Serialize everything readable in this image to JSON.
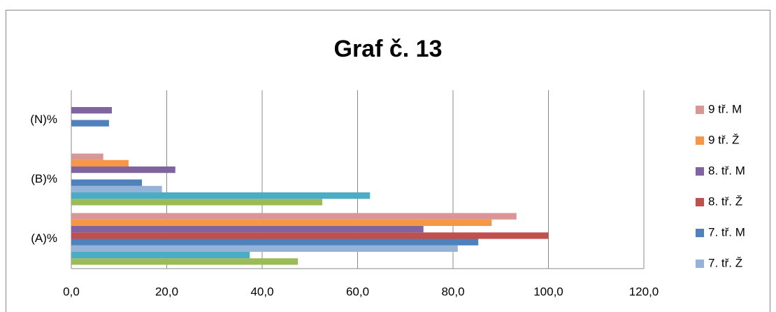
{
  "chart_data": {
    "type": "hbar",
    "title": "Graf č. 13",
    "categories": [
      "(A)%",
      "(B)%",
      "(N)%"
    ],
    "series": [
      {
        "color": "#9BBB59",
        "values": [
          47.5,
          52.6,
          0
        ]
      },
      {
        "color": "#4BACC6",
        "values": [
          37.4,
          62.6,
          0
        ]
      },
      {
        "name": "7. tř. Ž",
        "color": "#95B3D7",
        "values": [
          81.0,
          19.0,
          0
        ]
      },
      {
        "name": "7. tř. M",
        "color": "#4F81BD",
        "values": [
          85.3,
          14.8,
          7.9
        ]
      },
      {
        "name": "8. tř. Ž",
        "color": "#C0504D",
        "values": [
          100,
          0,
          0
        ]
      },
      {
        "name": "8. tř. M",
        "color": "#8064A2",
        "values": [
          73.8,
          21.8,
          8.5
        ]
      },
      {
        "name": "9 tř. Ž",
        "color": "#F79646",
        "values": [
          88.1,
          12.0,
          0
        ]
      },
      {
        "name": "9 tř. M",
        "color": "#D99694",
        "values": [
          93.3,
          6.7,
          0
        ]
      }
    ],
    "xlim": [
      0,
      120
    ],
    "xticks": [
      {
        "value": 0,
        "label": "0,0"
      },
      {
        "value": 20,
        "label": "20,0"
      },
      {
        "value": 40,
        "label": "40,0"
      },
      {
        "value": 60,
        "label": "60,0"
      },
      {
        "value": 80,
        "label": "80,0"
      },
      {
        "value": 100,
        "label": "100,0"
      },
      {
        "value": 120,
        "label": "120,0"
      }
    ],
    "grid": true,
    "legend": "right"
  }
}
